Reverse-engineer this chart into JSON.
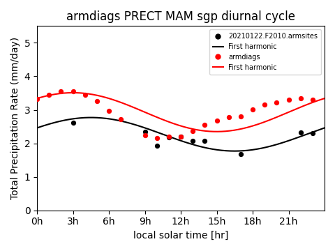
{
  "title": "armdiags PRECT MAM sgp diurnal cycle",
  "xlabel": "local solar time [hr]",
  "ylabel": "Total Precipitation Rate (mm/day)",
  "xlim": [
    0,
    24
  ],
  "ylim": [
    0,
    5.5
  ],
  "yticks": [
    0,
    1,
    2,
    3,
    4,
    5
  ],
  "xticks": [
    0,
    3,
    6,
    9,
    12,
    15,
    18,
    21
  ],
  "xticklabels": [
    "0h",
    "3h",
    "6h",
    "9h",
    "12h",
    "15h",
    "18h",
    "21h"
  ],
  "black_dots_x": [
    3,
    9,
    10,
    11,
    12,
    13,
    14,
    17,
    22,
    23
  ],
  "black_dots_y": [
    2.61,
    2.35,
    1.93,
    2.18,
    2.2,
    2.07,
    2.07,
    1.68,
    2.32,
    2.3
  ],
  "red_dots_x": [
    0,
    1,
    2,
    3,
    4,
    5,
    6,
    7,
    9,
    10,
    11,
    12,
    13,
    14,
    15,
    16,
    17,
    18,
    19,
    20,
    21,
    22,
    23
  ],
  "red_dots_y": [
    3.32,
    3.45,
    3.55,
    3.55,
    3.45,
    3.27,
    2.97,
    2.72,
    2.25,
    2.15,
    2.2,
    2.2,
    2.36,
    2.55,
    2.67,
    2.78,
    2.8,
    3.02,
    3.16,
    3.22,
    3.3,
    3.35,
    3.3
  ],
  "black_harm_A0": 2.27,
  "black_harm_A1": 0.5,
  "black_harm_phi1_hr": 4.5,
  "red_harm_A0": 2.93,
  "red_harm_A1": 0.58,
  "red_harm_phi1_hr": 3.0,
  "legend_labels": [
    "20210122.F2010.armsites",
    "First harmonic",
    "armdiags",
    "First harmonic"
  ]
}
